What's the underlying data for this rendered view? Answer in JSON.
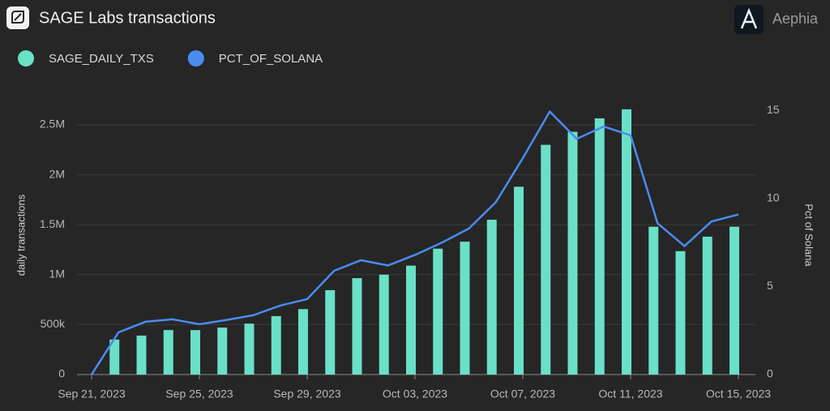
{
  "chart_data": {
    "type": "bar+line",
    "title": "SAGE Labs transactions",
    "brand": "Aephia",
    "ylabel": "daily transactions",
    "y2label": "Pct of Solana",
    "categories": [
      "Sep 21, 2023",
      null,
      null,
      null,
      "Sep 25, 2023",
      null,
      null,
      null,
      "Sep 29, 2023",
      null,
      null,
      null,
      "Oct 03, 2023",
      null,
      null,
      null,
      "Oct 07, 2023",
      null,
      null,
      null,
      "Oct 11, 2023",
      null,
      null,
      null,
      "Oct 15, 2023"
    ],
    "series": [
      {
        "name": "SAGE_DAILY_TXS",
        "color": "#6ae0c7",
        "type": "bar",
        "values": [
          0,
          350000,
          390000,
          445000,
          445000,
          470000,
          510000,
          585000,
          655000,
          845000,
          965000,
          1000000,
          1090000,
          1260000,
          1330000,
          1550000,
          1880000,
          2300000,
          2430000,
          2565000,
          2655000,
          1480000,
          1235000,
          1380000,
          1480000
        ]
      },
      {
        "name": "PCT_OF_SOLANA",
        "color": "#4a8cf0",
        "type": "line",
        "axis": "y2",
        "values": [
          0,
          2.4,
          3.0,
          3.14,
          2.86,
          3.1,
          3.37,
          3.92,
          4.29,
          5.9,
          6.5,
          6.2,
          6.8,
          7.5,
          8.3,
          9.8,
          12.3,
          14.95,
          13.4,
          14.1,
          13.6,
          8.6,
          7.3,
          8.7,
          9.1
        ]
      }
    ],
    "ylim": [
      0,
      2800000
    ],
    "yticks": [
      0,
      {
        "value": 500000,
        "label": "500k"
      },
      {
        "value": 1000000,
        "label": "1M"
      },
      {
        "value": 1500000,
        "label": "1.5M"
      },
      {
        "value": 2000000,
        "label": "2M"
      },
      {
        "value": 2500000,
        "label": "2.5M"
      }
    ],
    "y2lim": [
      0,
      15.9
    ],
    "y2ticks": [
      0,
      5,
      10,
      15
    ],
    "grid": true
  }
}
